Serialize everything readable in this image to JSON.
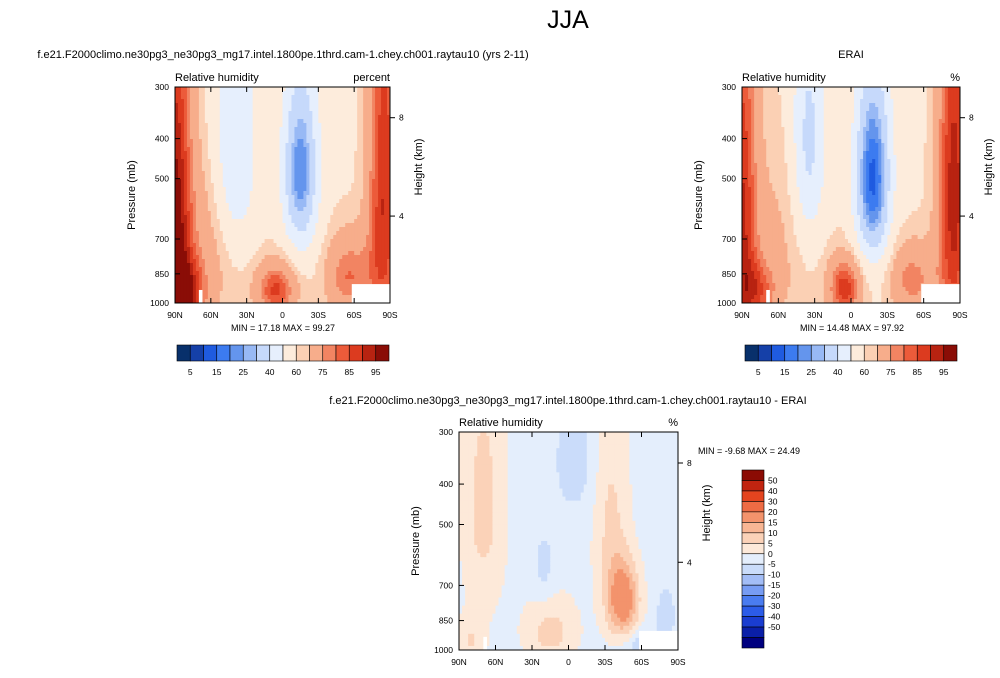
{
  "page": {
    "title": "JJA"
  },
  "palettes": {
    "rh": [
      "#08306b",
      "#1540a8",
      "#1f5be0",
      "#3c7bf0",
      "#6495ed",
      "#98b9f5",
      "#c6d9fb",
      "#e6effd",
      "#fdecdc",
      "#fbd0b4",
      "#f7ad8b",
      "#f28462",
      "#ec5b3a",
      "#dc3b1f",
      "#b82311",
      "#8a0d06"
    ],
    "diff": [
      "#00007f",
      "#0a1fa8",
      "#1a3dd0",
      "#2c5ce8",
      "#4a7cf0",
      "#779cf3",
      "#a3bdf6",
      "#cadcfa",
      "#e4eefc",
      "#fde9d9",
      "#fbd2b8",
      "#f8b694",
      "#f3936c",
      "#ee6b44",
      "#e4441f",
      "#c12410",
      "#8b0b04"
    ]
  },
  "chart_data": [
    {
      "id": "model",
      "type": "contour",
      "title": "f.e21.F2000climo.ne30pg3_ne30pg3_mg17.intel.1800pe.1thrd.cam-1.chey.ch001.raytau10 (yrs 2-11)",
      "variable_label": "Relative humidity",
      "units_label": "percent",
      "ylabel": "Pressure (mb)",
      "y2label": "Height (km)",
      "xticks": [
        "90N",
        "60N",
        "30N",
        "0",
        "30S",
        "60S",
        "90S"
      ],
      "yticks": [
        "300",
        "400",
        "500",
        "700",
        "850",
        "1000"
      ],
      "y2ticks": [
        "8",
        "4"
      ],
      "min_max_text": "MIN = 17.18 MAX = 99.27",
      "min": 17.18,
      "max": 99.27,
      "colorbar_labels": [
        "5",
        "15",
        "25",
        "40",
        "60",
        "75",
        "85",
        "95"
      ],
      "fields": [
        {
          "lat": 90,
          "p": 600,
          "sx": 10,
          "sy": 500,
          "amp": 35
        },
        {
          "lat": 80,
          "p": 950,
          "sx": 12,
          "sy": 120,
          "amp": 25
        },
        {
          "lat": 40,
          "p": 450,
          "sx": 13,
          "sy": 230,
          "amp": -22
        },
        {
          "lat": -15,
          "p": 480,
          "sx": 10,
          "sy": 160,
          "amp": -38
        },
        {
          "lat": 5,
          "p": 930,
          "sx": 12,
          "sy": 100,
          "amp": 28
        },
        {
          "lat": -55,
          "p": 860,
          "sx": 14,
          "sy": 140,
          "amp": 22
        },
        {
          "lat": -85,
          "p": 550,
          "sx": 10,
          "sy": 450,
          "amp": 32
        },
        {
          "lat": 60,
          "p": 700,
          "sx": 25,
          "sy": 250,
          "amp": 12
        }
      ],
      "base": 58
    },
    {
      "id": "obs",
      "type": "contour",
      "title": "ERAI",
      "variable_label": "Relative humidity",
      "units_label": "%",
      "ylabel": "Pressure (mb)",
      "y2label": "Height (km)",
      "xticks": [
        "90N",
        "60N",
        "30N",
        "0",
        "30S",
        "60S",
        "90S"
      ],
      "yticks": [
        "300",
        "400",
        "500",
        "700",
        "850",
        "1000"
      ],
      "y2ticks": [
        "8",
        "4"
      ],
      "min_max_text": "MIN = 14.48 MAX = 97.92",
      "min": 14.48,
      "max": 97.92,
      "colorbar_labels": [
        "5",
        "15",
        "25",
        "40",
        "60",
        "75",
        "85",
        "95"
      ],
      "fields": [
        {
          "lat": 90,
          "p": 600,
          "sx": 9,
          "sy": 500,
          "amp": 30
        },
        {
          "lat": 75,
          "p": 940,
          "sx": 12,
          "sy": 120,
          "amp": 20
        },
        {
          "lat": 35,
          "p": 420,
          "sx": 10,
          "sy": 200,
          "amp": -24
        },
        {
          "lat": -18,
          "p": 500,
          "sx": 10,
          "sy": 180,
          "amp": -45
        },
        {
          "lat": 5,
          "p": 920,
          "sx": 10,
          "sy": 110,
          "amp": 30
        },
        {
          "lat": -50,
          "p": 880,
          "sx": 14,
          "sy": 130,
          "amp": 20
        },
        {
          "lat": -85,
          "p": 550,
          "sx": 10,
          "sy": 450,
          "amp": 35
        },
        {
          "lat": 55,
          "p": 650,
          "sx": 25,
          "sy": 250,
          "amp": 8
        }
      ],
      "base": 58
    },
    {
      "id": "diff",
      "type": "contour",
      "title": "f.e21.F2000climo.ne30pg3_ne30pg3_mg17.intel.1800pe.1thrd.cam-1.chey.ch001.raytau10 - ERAI",
      "variable_label": "Relative humidity",
      "units_label": "%",
      "ylabel": "Pressure (mb)",
      "y2label": "Height (km)",
      "xticks": [
        "90N",
        "60N",
        "30N",
        "0",
        "30S",
        "60S",
        "90S"
      ],
      "yticks": [
        "300",
        "400",
        "500",
        "700",
        "850",
        "1000"
      ],
      "y2ticks": [
        "8",
        "4"
      ],
      "min_max_text": "MIN = -9.68 MAX = 24.49",
      "min": -9.68,
      "max": 24.49,
      "colorbar_labels": [
        "50",
        "40",
        "30",
        "20",
        "15",
        "10",
        "5",
        "0",
        "-5",
        "-10",
        "-15",
        "-20",
        "-30",
        "-40",
        "-50"
      ],
      "fields": [
        {
          "lat": -45,
          "p": 760,
          "sx": 9,
          "sy": 110,
          "amp": 22
        },
        {
          "lat": -35,
          "p": 500,
          "sx": 10,
          "sy": 220,
          "amp": 8
        },
        {
          "lat": 15,
          "p": 900,
          "sx": 15,
          "sy": 120,
          "amp": 9
        },
        {
          "lat": 70,
          "p": 450,
          "sx": 12,
          "sy": 220,
          "amp": 9
        },
        {
          "lat": 80,
          "p": 950,
          "sx": 8,
          "sy": 90,
          "amp": 7
        },
        {
          "lat": -5,
          "p": 350,
          "sx": 12,
          "sy": 80,
          "amp": -6
        },
        {
          "lat": 20,
          "p": 640,
          "sx": 7,
          "sy": 100,
          "amp": -5
        },
        {
          "lat": -80,
          "p": 830,
          "sx": 5,
          "sy": 80,
          "amp": -8
        },
        {
          "lat": -60,
          "p": 980,
          "sx": 10,
          "sy": 60,
          "amp": -7
        }
      ],
      "base": 3
    }
  ]
}
